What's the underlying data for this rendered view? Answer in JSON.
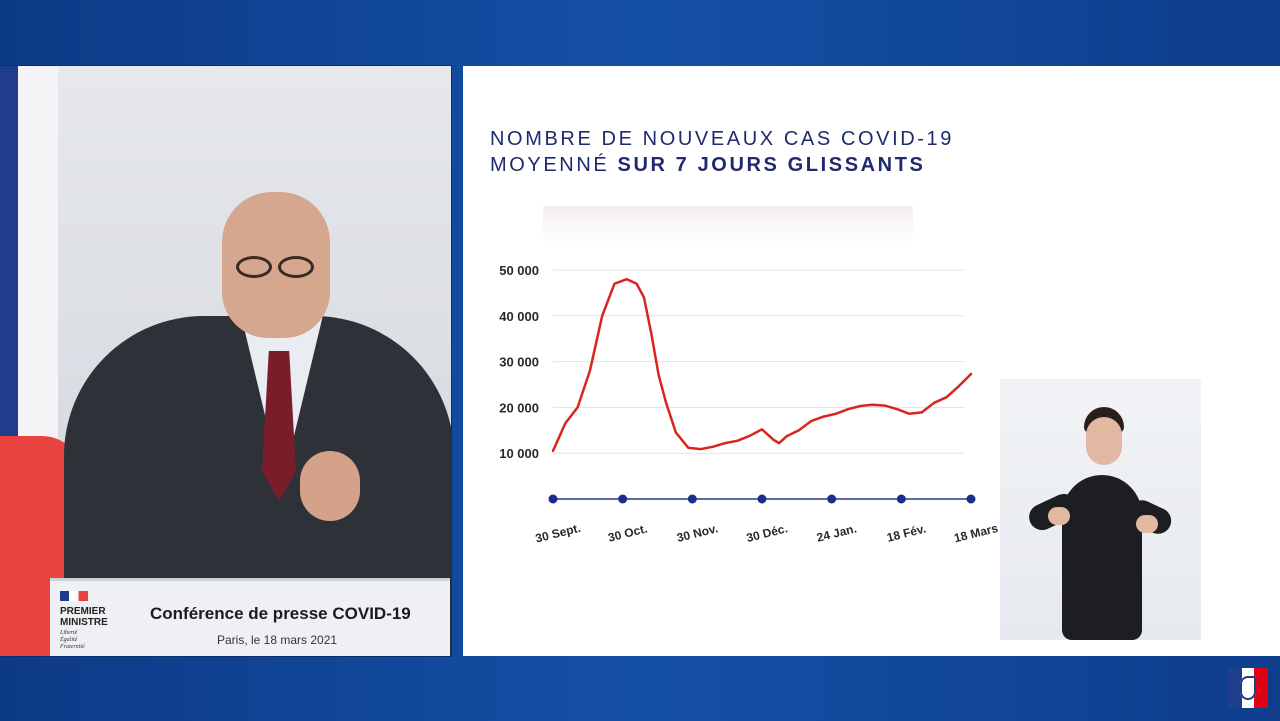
{
  "podium": {
    "logo_line1": "PREMIER",
    "logo_line2": "MINISTRE",
    "devise": [
      "Liberté",
      "Égalité",
      "Fraternité"
    ],
    "title": "Conférence de presse COVID-19",
    "subtitle": "Paris, le 18 mars 2021"
  },
  "chart_data": {
    "type": "line",
    "title_line1": "NOMBRE DE NOUVEAUX CAS COVID-19",
    "title_line2_regular": "MOYENNÉ",
    "title_line2_bold": "SUR 7 JOURS GLISSANTS",
    "xlabel": "",
    "ylabel": "",
    "ylim": [
      0,
      50000
    ],
    "yticks": [
      {
        "value": 10000,
        "label": "10 000"
      },
      {
        "value": 20000,
        "label": "20 000"
      },
      {
        "value": 30000,
        "label": "30 000"
      },
      {
        "value": 40000,
        "label": "40 000"
      },
      {
        "value": 50000,
        "label": "50 000"
      }
    ],
    "xtick_labels": [
      "30 Sept.",
      "30 Oct.",
      "30 Nov.",
      "30 Déc.",
      "24 Jan.",
      "18 Fév.",
      "18 Mars"
    ],
    "grid": true,
    "line_color": "#d7261e",
    "axis_color": "#2b3a8c",
    "x": [
      0,
      5,
      10,
      15,
      20,
      25,
      30,
      34,
      37,
      40,
      43,
      46,
      50,
      55,
      60,
      65,
      70,
      75,
      80,
      85,
      90,
      92,
      95,
      100,
      105,
      110,
      115,
      120,
      125,
      130,
      135,
      140,
      145,
      150,
      155,
      160,
      165,
      170
    ],
    "values": [
      10500,
      16500,
      20000,
      28000,
      40000,
      47000,
      48000,
      47000,
      44000,
      36000,
      27000,
      21000,
      14500,
      11200,
      10900,
      11400,
      12200,
      12700,
      13800,
      15200,
      12800,
      12200,
      13700,
      15000,
      17000,
      18000,
      18600,
      19600,
      20300,
      20600,
      20400,
      19600,
      18600,
      18900,
      21000,
      22200,
      24600,
      27300
    ]
  }
}
